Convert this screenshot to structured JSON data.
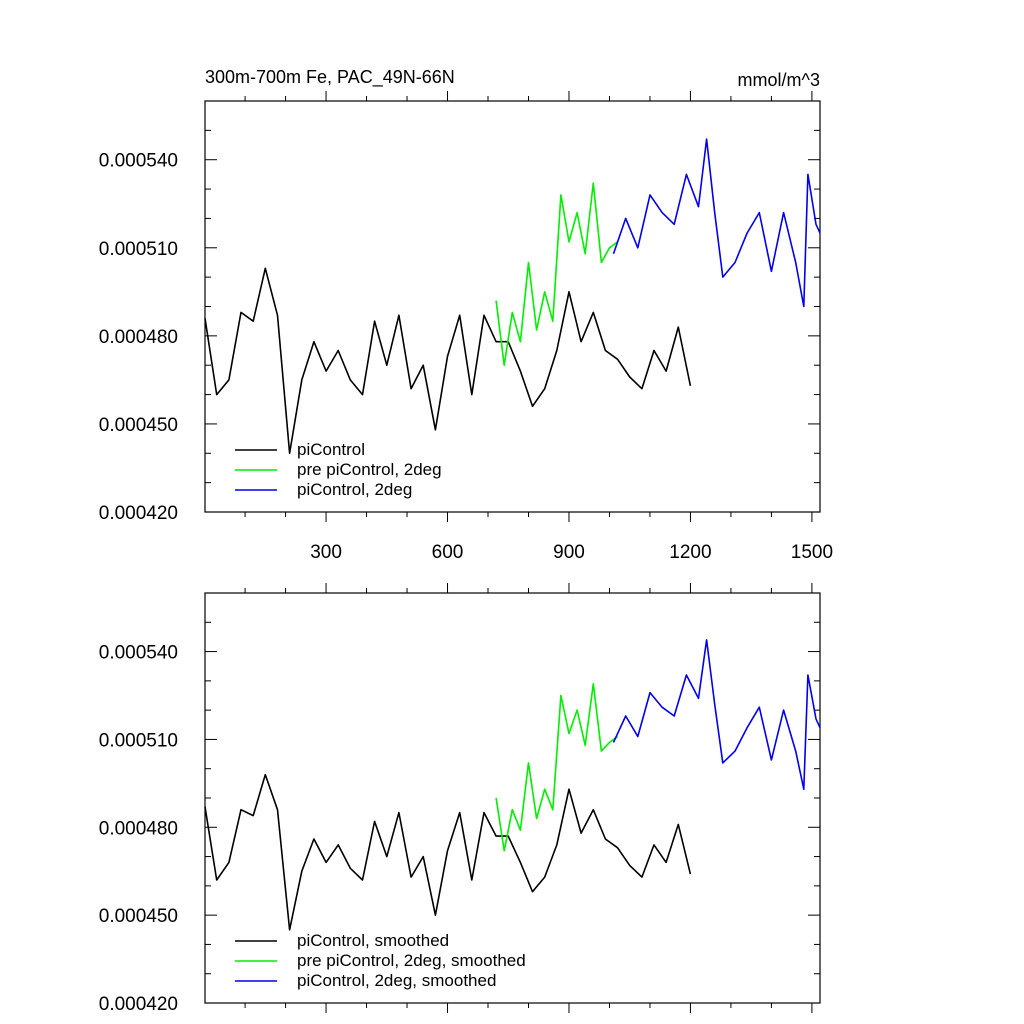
{
  "chart_data": [
    {
      "type": "line",
      "title": "300m-700m Fe, PAC_49N-66N",
      "units": "mmol/m^3",
      "xlabel": "",
      "ylabel": "",
      "xlim": [
        1,
        1520
      ],
      "ylim": [
        0.00042,
        0.00056
      ],
      "xticks": [
        300,
        600,
        900,
        1200,
        1500
      ],
      "xticklabels": [
        "300",
        "600",
        "900",
        "1200",
        "1500"
      ],
      "yticks": [
        0.00042,
        0.00045,
        0.00048,
        0.00051,
        0.00054
      ],
      "yticklabels": [
        "0.000420",
        "0.000450",
        "0.000480",
        "0.000510",
        "0.000540"
      ],
      "legend_position": "bottom-left",
      "series": [
        {
          "name": "piControl",
          "color": "#000000",
          "x": [
            1,
            30,
            60,
            90,
            120,
            150,
            180,
            210,
            240,
            270,
            300,
            330,
            360,
            390,
            420,
            450,
            480,
            510,
            540,
            570,
            600,
            630,
            660,
            690,
            720,
            750,
            780,
            810,
            840,
            870,
            900,
            930,
            960,
            990,
            1020,
            1050,
            1080,
            1110,
            1140,
            1170,
            1200
          ],
          "values": [
            0.000486,
            0.00046,
            0.000465,
            0.000488,
            0.000485,
            0.000503,
            0.000487,
            0.00044,
            0.000465,
            0.000478,
            0.000468,
            0.000475,
            0.000465,
            0.00046,
            0.000485,
            0.00047,
            0.000487,
            0.000462,
            0.00047,
            0.000448,
            0.000473,
            0.000487,
            0.00046,
            0.000487,
            0.000478,
            0.000478,
            0.000468,
            0.000456,
            0.000462,
            0.000475,
            0.000495,
            0.000478,
            0.000488,
            0.000475,
            0.000472,
            0.000466,
            0.000462,
            0.000475,
            0.000468,
            0.000483,
            0.000463
          ]
        },
        {
          "name": "pre piControl, 2deg",
          "color": "#00ee00",
          "x": [
            720,
            740,
            760,
            780,
            800,
            820,
            840,
            860,
            880,
            900,
            920,
            940,
            960,
            980,
            1000,
            1020
          ],
          "values": [
            0.000492,
            0.00047,
            0.000488,
            0.000478,
            0.000505,
            0.000482,
            0.000495,
            0.000485,
            0.000528,
            0.000512,
            0.000522,
            0.000508,
            0.000532,
            0.000505,
            0.00051,
            0.000512
          ]
        },
        {
          "name": "piControl, 2deg",
          "color": "#0000ee",
          "x": [
            1010,
            1040,
            1070,
            1100,
            1130,
            1160,
            1190,
            1220,
            1240,
            1260,
            1280,
            1310,
            1340,
            1370,
            1400,
            1430,
            1460,
            1480,
            1490,
            1510,
            1520
          ],
          "values": [
            0.000508,
            0.00052,
            0.00051,
            0.000528,
            0.000522,
            0.000518,
            0.000535,
            0.000524,
            0.000547,
            0.000522,
            0.0005,
            0.000505,
            0.000515,
            0.000522,
            0.000502,
            0.000522,
            0.000505,
            0.00049,
            0.000535,
            0.000518,
            0.000515
          ]
        }
      ]
    },
    {
      "type": "line",
      "title": "",
      "xlabel": "",
      "ylabel": "",
      "xlim": [
        1,
        1520
      ],
      "ylim": [
        0.00042,
        0.00056
      ],
      "xticks": [
        300,
        600,
        900,
        1200,
        1500
      ],
      "xticklabels": [],
      "yticks": [
        0.00042,
        0.00045,
        0.00048,
        0.00051,
        0.00054
      ],
      "yticklabels": [
        "0.000420",
        "0.000450",
        "0.000480",
        "0.000510",
        "0.000540"
      ],
      "legend_position": "bottom-left",
      "series": [
        {
          "name": "piControl, smoothed",
          "color": "#000000",
          "x": [
            1,
            30,
            60,
            90,
            120,
            150,
            180,
            210,
            240,
            270,
            300,
            330,
            360,
            390,
            420,
            450,
            480,
            510,
            540,
            570,
            600,
            630,
            660,
            690,
            720,
            750,
            780,
            810,
            840,
            870,
            900,
            930,
            960,
            990,
            1020,
            1050,
            1080,
            1110,
            1140,
            1170,
            1200
          ],
          "values": [
            0.000487,
            0.000462,
            0.000468,
            0.000486,
            0.000484,
            0.000498,
            0.000486,
            0.000445,
            0.000465,
            0.000476,
            0.000468,
            0.000474,
            0.000466,
            0.000462,
            0.000482,
            0.00047,
            0.000485,
            0.000463,
            0.00047,
            0.00045,
            0.000472,
            0.000485,
            0.000462,
            0.000485,
            0.000477,
            0.000477,
            0.000468,
            0.000458,
            0.000463,
            0.000474,
            0.000493,
            0.000478,
            0.000486,
            0.000476,
            0.000473,
            0.000467,
            0.000463,
            0.000474,
            0.000468,
            0.000481,
            0.000464
          ]
        },
        {
          "name": "pre piControl, 2deg, smoothed",
          "color": "#00ee00",
          "x": [
            720,
            740,
            760,
            780,
            800,
            820,
            840,
            860,
            880,
            900,
            920,
            940,
            960,
            980,
            1000,
            1020
          ],
          "values": [
            0.00049,
            0.000472,
            0.000486,
            0.000479,
            0.000502,
            0.000483,
            0.000493,
            0.000486,
            0.000525,
            0.000512,
            0.00052,
            0.000508,
            0.000529,
            0.000506,
            0.000509,
            0.000511
          ]
        },
        {
          "name": "piControl, 2deg, smoothed",
          "color": "#0000ee",
          "x": [
            1010,
            1040,
            1070,
            1100,
            1130,
            1160,
            1190,
            1220,
            1240,
            1260,
            1280,
            1310,
            1340,
            1370,
            1400,
            1430,
            1460,
            1480,
            1490,
            1510,
            1520
          ],
          "values": [
            0.000509,
            0.000518,
            0.000511,
            0.000526,
            0.000521,
            0.000518,
            0.000532,
            0.000524,
            0.000544,
            0.000522,
            0.000502,
            0.000506,
            0.000514,
            0.000521,
            0.000503,
            0.00052,
            0.000506,
            0.000493,
            0.000532,
            0.000517,
            0.000514
          ]
        }
      ]
    }
  ]
}
